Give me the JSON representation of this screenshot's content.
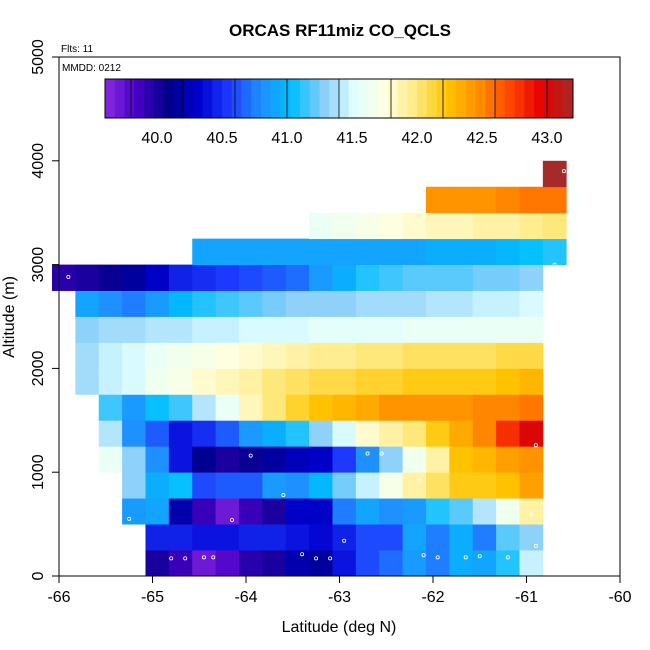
{
  "chart_data": {
    "type": "heatmap",
    "title": "ORCAS RF11miz CO_QCLS",
    "annotations": {
      "flights": "Flts: 11",
      "date": "MMDD: 0212"
    },
    "xlabel": "Latitude (deg N)",
    "ylabel": "Altitude (m)",
    "xlim": [
      -66,
      -60
    ],
    "ylim": [
      0,
      5000
    ],
    "x_ticks": [
      -66,
      -65,
      -64,
      -63,
      -62,
      -61,
      -60
    ],
    "y_ticks": [
      0,
      1000,
      2000,
      3000,
      4000,
      5000
    ],
    "colorbar": {
      "min": 39.6,
      "max": 43.2,
      "ticks": [
        40.0,
        40.5,
        41.0,
        41.5,
        42.0,
        42.5,
        43.0
      ],
      "colors": [
        "#8a2be2",
        "#4a00c8",
        "#00008b",
        "#0000cd",
        "#1e3cff",
        "#1e90ff",
        "#00bfff",
        "#87cefa",
        "#e0ffff",
        "#ffffe0",
        "#ffe87a",
        "#ffc400",
        "#ff8c00",
        "#ff4500",
        "#e60000",
        "#a52a2a"
      ]
    },
    "bin_width_deg": 0.25,
    "bin_height_m": 250,
    "cells": [
      [
        -64.95,
        125,
        40.0
      ],
      [
        -64.7,
        125,
        39.9
      ],
      [
        -64.45,
        125,
        39.7
      ],
      [
        -64.2,
        125,
        39.8
      ],
      [
        -63.95,
        125,
        39.95
      ],
      [
        -63.7,
        125,
        40.0
      ],
      [
        -63.45,
        125,
        40.2
      ],
      [
        -63.2,
        125,
        40.15
      ],
      [
        -62.95,
        125,
        40.4
      ],
      [
        -62.7,
        125,
        40.6
      ],
      [
        -62.45,
        125,
        40.7
      ],
      [
        -62.2,
        125,
        40.85
      ],
      [
        -61.95,
        125,
        40.75
      ],
      [
        -61.7,
        125,
        40.95
      ],
      [
        -61.45,
        125,
        40.9
      ],
      [
        -61.2,
        125,
        41.1
      ],
      [
        -60.95,
        125,
        41.45
      ],
      [
        -64.95,
        375,
        40.45
      ],
      [
        -64.7,
        375,
        40.45
      ],
      [
        -64.45,
        375,
        40.4
      ],
      [
        -64.2,
        375,
        40.4
      ],
      [
        -63.95,
        375,
        40.45
      ],
      [
        -63.7,
        375,
        40.45
      ],
      [
        -63.45,
        375,
        40.4
      ],
      [
        -63.2,
        375,
        40.35
      ],
      [
        -62.95,
        375,
        40.45
      ],
      [
        -62.7,
        375,
        40.6
      ],
      [
        -62.45,
        375,
        40.6
      ],
      [
        -62.2,
        375,
        40.9
      ],
      [
        -61.95,
        375,
        40.75
      ],
      [
        -61.7,
        375,
        40.95
      ],
      [
        -61.45,
        375,
        40.75
      ],
      [
        -61.2,
        375,
        41.2
      ],
      [
        -60.95,
        375,
        41.3
      ],
      [
        -65.2,
        625,
        40.85
      ],
      [
        -64.95,
        625,
        40.9
      ],
      [
        -64.7,
        625,
        40.2
      ],
      [
        -64.45,
        625,
        39.9
      ],
      [
        -64.2,
        625,
        39.7
      ],
      [
        -63.95,
        625,
        39.9
      ],
      [
        -63.7,
        625,
        40.0
      ],
      [
        -63.45,
        625,
        40.3
      ],
      [
        -63.2,
        625,
        40.3
      ],
      [
        -62.95,
        625,
        40.75
      ],
      [
        -62.7,
        625,
        40.9
      ],
      [
        -62.45,
        625,
        40.8
      ],
      [
        -62.2,
        625,
        40.85
      ],
      [
        -61.95,
        625,
        41.1
      ],
      [
        -61.7,
        625,
        41.2
      ],
      [
        -61.45,
        625,
        41.4
      ],
      [
        -61.2,
        625,
        41.65
      ],
      [
        -60.95,
        625,
        41.9
      ],
      [
        -65.2,
        875,
        41.3
      ],
      [
        -64.95,
        875,
        40.95
      ],
      [
        -64.7,
        875,
        41.05
      ],
      [
        -64.45,
        875,
        40.6
      ],
      [
        -64.2,
        875,
        40.65
      ],
      [
        -63.95,
        875,
        40.65
      ],
      [
        -63.7,
        875,
        40.85
      ],
      [
        -63.45,
        875,
        40.8
      ],
      [
        -63.2,
        875,
        41.0
      ],
      [
        -62.95,
        875,
        41.25
      ],
      [
        -62.7,
        875,
        41.45
      ],
      [
        -62.45,
        875,
        41.7
      ],
      [
        -62.2,
        875,
        41.9
      ],
      [
        -61.95,
        875,
        42.05
      ],
      [
        -61.7,
        875,
        42.2
      ],
      [
        -61.45,
        875,
        42.2
      ],
      [
        -61.2,
        875,
        42.25
      ],
      [
        -60.95,
        875,
        42.4
      ],
      [
        -65.45,
        1125,
        41.6
      ],
      [
        -65.2,
        1125,
        41.3
      ],
      [
        -64.95,
        1125,
        40.8
      ],
      [
        -64.7,
        1125,
        40.4
      ],
      [
        -64.45,
        1125,
        40.1
      ],
      [
        -64.2,
        1125,
        40.0
      ],
      [
        -63.95,
        1125,
        40.05
      ],
      [
        -63.7,
        1125,
        40.15
      ],
      [
        -63.45,
        1125,
        40.25
      ],
      [
        -63.2,
        1125,
        40.3
      ],
      [
        -62.95,
        1125,
        40.55
      ],
      [
        -62.7,
        1125,
        40.8
      ],
      [
        -62.45,
        1125,
        41.3
      ],
      [
        -62.2,
        1125,
        41.65
      ],
      [
        -61.95,
        1125,
        41.9
      ],
      [
        -61.7,
        1125,
        42.25
      ],
      [
        -61.45,
        1125,
        42.3
      ],
      [
        -61.2,
        1125,
        42.4
      ],
      [
        -60.95,
        1125,
        42.45
      ],
      [
        -65.45,
        1375,
        41.4
      ],
      [
        -65.2,
        1375,
        40.8
      ],
      [
        -64.95,
        1375,
        40.65
      ],
      [
        -64.7,
        1375,
        40.4
      ],
      [
        -64.45,
        1375,
        40.5
      ],
      [
        -64.2,
        1375,
        40.65
      ],
      [
        -63.95,
        1375,
        40.85
      ],
      [
        -63.7,
        1375,
        40.95
      ],
      [
        -63.45,
        1375,
        41.1
      ],
      [
        -63.2,
        1375,
        41.3
      ],
      [
        -62.95,
        1375,
        41.5
      ],
      [
        -62.7,
        1375,
        41.8
      ],
      [
        -62.45,
        1375,
        41.9
      ],
      [
        -62.2,
        1375,
        42.0
      ],
      [
        -61.95,
        1375,
        42.2
      ],
      [
        -61.7,
        1375,
        42.35
      ],
      [
        -61.45,
        1375,
        42.5
      ],
      [
        -61.2,
        1375,
        42.8
      ],
      [
        -60.95,
        1375,
        43.0
      ],
      [
        -65.45,
        1625,
        41.15
      ],
      [
        -65.2,
        1625,
        40.85
      ],
      [
        -64.95,
        1625,
        41.05
      ],
      [
        -64.7,
        1625,
        41.15
      ],
      [
        -64.45,
        1625,
        41.4
      ],
      [
        -64.2,
        1625,
        41.6
      ],
      [
        -63.95,
        1625,
        41.85
      ],
      [
        -63.7,
        1625,
        42.0
      ],
      [
        -63.45,
        1625,
        42.15
      ],
      [
        -63.2,
        1625,
        42.25
      ],
      [
        -62.95,
        1625,
        42.3
      ],
      [
        -62.7,
        1625,
        42.35
      ],
      [
        -62.45,
        1625,
        42.45
      ],
      [
        -62.2,
        1625,
        42.45
      ],
      [
        -61.95,
        1625,
        42.45
      ],
      [
        -61.7,
        1625,
        42.45
      ],
      [
        -61.45,
        1625,
        42.5
      ],
      [
        -61.2,
        1625,
        42.5
      ],
      [
        -60.95,
        1625,
        42.55
      ],
      [
        -65.7,
        1875,
        41.35
      ],
      [
        -65.45,
        1875,
        41.45
      ],
      [
        -65.2,
        1875,
        41.5
      ],
      [
        -64.95,
        1875,
        41.65
      ],
      [
        -64.7,
        1875,
        41.7
      ],
      [
        -64.45,
        1875,
        41.8
      ],
      [
        -64.2,
        1875,
        41.85
      ],
      [
        -63.95,
        1875,
        41.9
      ],
      [
        -63.7,
        1875,
        42.0
      ],
      [
        -63.45,
        1875,
        42.05
      ],
      [
        -63.2,
        1875,
        42.1
      ],
      [
        -62.95,
        1875,
        42.1
      ],
      [
        -62.7,
        1875,
        42.15
      ],
      [
        -62.45,
        1875,
        42.15
      ],
      [
        -62.2,
        1875,
        42.2
      ],
      [
        -61.95,
        1875,
        42.2
      ],
      [
        -61.7,
        1875,
        42.2
      ],
      [
        -61.45,
        1875,
        42.2
      ],
      [
        -61.2,
        1875,
        42.25
      ],
      [
        -60.95,
        1875,
        42.3
      ],
      [
        -65.7,
        2125,
        41.35
      ],
      [
        -65.45,
        2125,
        41.45
      ],
      [
        -65.2,
        2125,
        41.5
      ],
      [
        -64.95,
        2125,
        41.6
      ],
      [
        -64.7,
        2125,
        41.65
      ],
      [
        -64.45,
        2125,
        41.7
      ],
      [
        -64.2,
        2125,
        41.75
      ],
      [
        -63.95,
        2125,
        41.8
      ],
      [
        -63.7,
        2125,
        41.85
      ],
      [
        -63.45,
        2125,
        41.9
      ],
      [
        -63.2,
        2125,
        41.95
      ],
      [
        -62.95,
        2125,
        41.95
      ],
      [
        -62.7,
        2125,
        42.0
      ],
      [
        -62.45,
        2125,
        42.0
      ],
      [
        -62.2,
        2125,
        42.05
      ],
      [
        -61.95,
        2125,
        42.05
      ],
      [
        -61.7,
        2125,
        42.05
      ],
      [
        -61.45,
        2125,
        42.05
      ],
      [
        -61.2,
        2125,
        42.1
      ],
      [
        -60.95,
        2125,
        42.1
      ],
      [
        -65.7,
        2375,
        41.3
      ],
      [
        -65.45,
        2375,
        41.35
      ],
      [
        -65.2,
        2375,
        41.35
      ],
      [
        -64.95,
        2375,
        41.4
      ],
      [
        -64.7,
        2375,
        41.4
      ],
      [
        -64.45,
        2375,
        41.45
      ],
      [
        -64.2,
        2375,
        41.45
      ],
      [
        -63.95,
        2375,
        41.5
      ],
      [
        -63.7,
        2375,
        41.5
      ],
      [
        -63.45,
        2375,
        41.5
      ],
      [
        -63.2,
        2375,
        41.55
      ],
      [
        -62.95,
        2375,
        41.55
      ],
      [
        -62.7,
        2375,
        41.55
      ],
      [
        -62.45,
        2375,
        41.55
      ],
      [
        -62.2,
        2375,
        41.6
      ],
      [
        -61.95,
        2375,
        41.6
      ],
      [
        -61.7,
        2375,
        41.6
      ],
      [
        -61.45,
        2375,
        41.6
      ],
      [
        -61.2,
        2375,
        41.6
      ],
      [
        -60.95,
        2375,
        41.6
      ],
      [
        -65.7,
        2625,
        40.9
      ],
      [
        -65.45,
        2625,
        40.8
      ],
      [
        -65.2,
        2625,
        40.75
      ],
      [
        -64.95,
        2625,
        40.85
      ],
      [
        -64.7,
        2625,
        41.0
      ],
      [
        -64.45,
        2625,
        41.1
      ],
      [
        -64.2,
        2625,
        41.15
      ],
      [
        -63.95,
        2625,
        41.2
      ],
      [
        -63.7,
        2625,
        41.25
      ],
      [
        -63.45,
        2625,
        41.3
      ],
      [
        -63.2,
        2625,
        41.3
      ],
      [
        -62.95,
        2625,
        41.3
      ],
      [
        -62.7,
        2625,
        41.35
      ],
      [
        -62.45,
        2625,
        41.35
      ],
      [
        -62.2,
        2625,
        41.35
      ],
      [
        -61.95,
        2625,
        41.4
      ],
      [
        -61.7,
        2625,
        41.4
      ],
      [
        -61.45,
        2625,
        41.45
      ],
      [
        -61.2,
        2625,
        41.45
      ],
      [
        -60.95,
        2625,
        41.5
      ],
      [
        -65.95,
        2875,
        39.95
      ],
      [
        -65.7,
        2875,
        40.0
      ],
      [
        -65.45,
        2875,
        40.05
      ],
      [
        -65.2,
        2875,
        40.15
      ],
      [
        -64.95,
        2875,
        40.3
      ],
      [
        -64.7,
        2875,
        40.45
      ],
      [
        -64.45,
        2875,
        40.5
      ],
      [
        -64.2,
        2875,
        40.55
      ],
      [
        -63.95,
        2875,
        40.6
      ],
      [
        -63.7,
        2875,
        40.65
      ],
      [
        -63.45,
        2875,
        40.7
      ],
      [
        -63.2,
        2875,
        40.85
      ],
      [
        -62.95,
        2875,
        40.95
      ],
      [
        -62.7,
        2875,
        41.1
      ],
      [
        -62.45,
        2875,
        41.15
      ],
      [
        -62.2,
        2875,
        41.2
      ],
      [
        -61.95,
        2875,
        41.2
      ],
      [
        -61.7,
        2875,
        41.2
      ],
      [
        -61.45,
        2875,
        41.25
      ],
      [
        -61.2,
        2875,
        41.25
      ],
      [
        -60.95,
        2875,
        41.3
      ],
      [
        -64.45,
        3125,
        40.9
      ],
      [
        -64.2,
        3125,
        40.9
      ],
      [
        -63.95,
        3125,
        40.9
      ],
      [
        -63.7,
        3125,
        40.9
      ],
      [
        -63.45,
        3125,
        40.9
      ],
      [
        -63.2,
        3125,
        40.9
      ],
      [
        -62.95,
        3125,
        40.9
      ],
      [
        -62.7,
        3125,
        40.9
      ],
      [
        -62.45,
        3125,
        40.9
      ],
      [
        -62.2,
        3125,
        40.9
      ],
      [
        -61.95,
        3125,
        40.95
      ],
      [
        -61.7,
        3125,
        40.95
      ],
      [
        -61.45,
        3125,
        40.95
      ],
      [
        -61.2,
        3125,
        41.0
      ],
      [
        -60.95,
        3125,
        41.05
      ],
      [
        -60.7,
        3125,
        41.1
      ],
      [
        -63.2,
        3375,
        41.6
      ],
      [
        -62.95,
        3375,
        41.65
      ],
      [
        -62.7,
        3375,
        41.7
      ],
      [
        -62.45,
        3375,
        41.75
      ],
      [
        -62.2,
        3375,
        41.8
      ],
      [
        -61.95,
        3375,
        41.85
      ],
      [
        -61.7,
        3375,
        41.85
      ],
      [
        -61.45,
        3375,
        41.9
      ],
      [
        -61.2,
        3375,
        41.9
      ],
      [
        -60.95,
        3375,
        41.95
      ],
      [
        -60.7,
        3375,
        42.0
      ],
      [
        -61.95,
        3625,
        42.45
      ],
      [
        -61.7,
        3625,
        42.45
      ],
      [
        -61.45,
        3625,
        42.45
      ],
      [
        -61.2,
        3625,
        42.5
      ],
      [
        -60.95,
        3625,
        42.55
      ],
      [
        -60.7,
        3625,
        42.55
      ],
      [
        -60.7,
        3875,
        43.2
      ]
    ],
    "observations": [
      [
        -65.9,
        2880
      ],
      [
        -64.8,
        170
      ],
      [
        -64.65,
        170
      ],
      [
        -64.45,
        180
      ],
      [
        -64.35,
        180
      ],
      [
        -64.15,
        540
      ],
      [
        -63.95,
        1160
      ],
      [
        -63.6,
        780
      ],
      [
        -63.4,
        210
      ],
      [
        -63.25,
        170
      ],
      [
        -63.1,
        170
      ],
      [
        -62.95,
        340
      ],
      [
        -62.7,
        1180
      ],
      [
        -62.55,
        1180
      ],
      [
        -62.15,
        920
      ],
      [
        -62.1,
        200
      ],
      [
        -61.95,
        180
      ],
      [
        -61.65,
        180
      ],
      [
        -61.5,
        190
      ],
      [
        -60.9,
        1260
      ],
      [
        -60.95,
        600
      ],
      [
        -60.9,
        290
      ],
      [
        -61.2,
        180
      ],
      [
        -60.7,
        3000
      ],
      [
        -60.6,
        3900
      ],
      [
        -65.25,
        550
      ]
    ]
  }
}
